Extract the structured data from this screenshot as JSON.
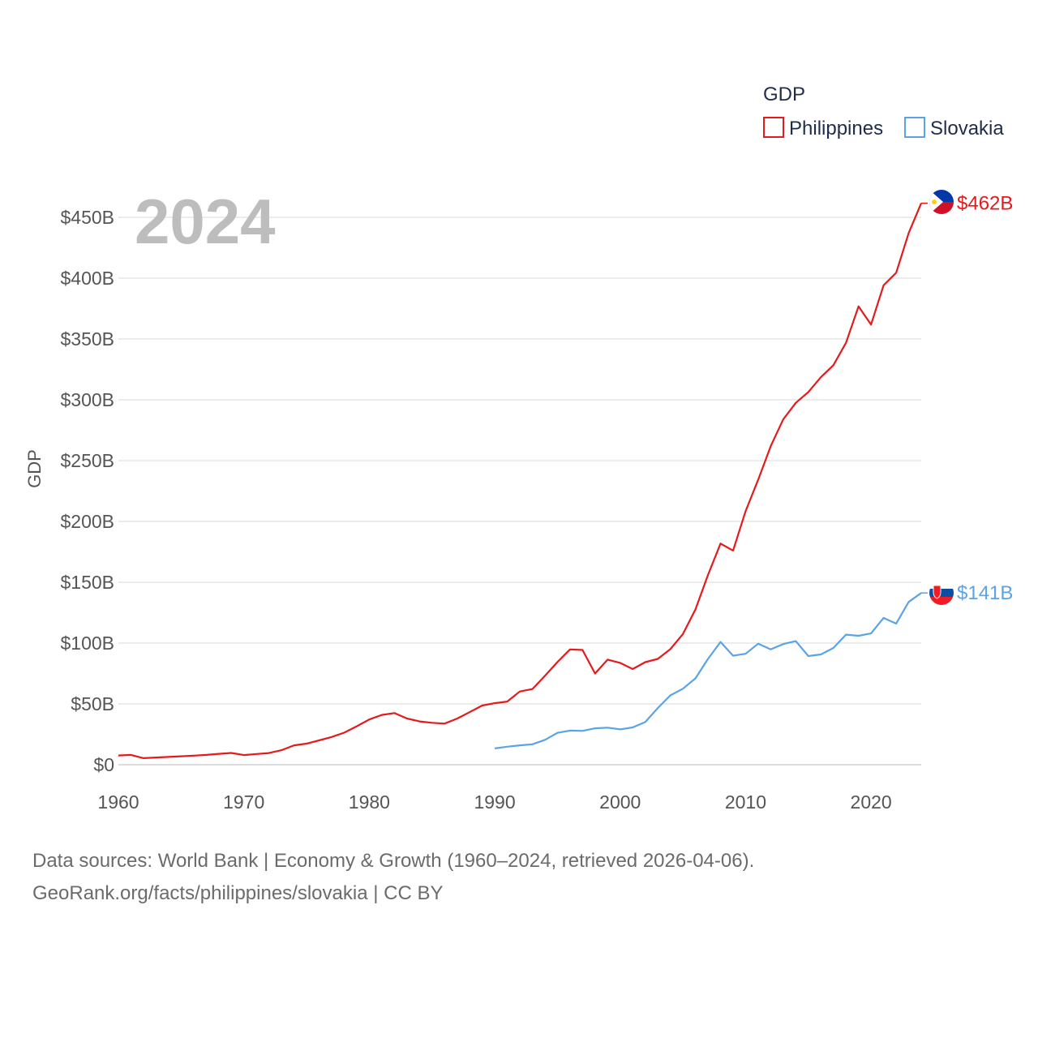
{
  "chart_data": {
    "type": "line",
    "title": "2024",
    "ylabel": "GDP",
    "xlabel": "",
    "xlim": [
      1960,
      2024
    ],
    "ylim": [
      0,
      450
    ],
    "x_ticks": [
      1960,
      1970,
      1980,
      1990,
      2000,
      2010,
      2020
    ],
    "y_ticks": [
      0,
      50,
      100,
      150,
      200,
      250,
      300,
      350,
      400,
      450
    ],
    "y_tick_labels": [
      "$0",
      "$50B",
      "$100B",
      "$150B",
      "$200B",
      "$250B",
      "$300B",
      "$350B",
      "$400B",
      "$450B"
    ],
    "grid": true,
    "legend": {
      "title": "GDP",
      "position": "top-right",
      "entries": [
        "Philippines",
        "Slovakia"
      ]
    },
    "series": [
      {
        "name": "Philippines",
        "color": "#e41a1c",
        "end_label": "$462B",
        "x": [
          1960,
          1961,
          1962,
          1963,
          1964,
          1965,
          1966,
          1967,
          1968,
          1969,
          1970,
          1971,
          1972,
          1973,
          1974,
          1975,
          1976,
          1977,
          1978,
          1979,
          1980,
          1981,
          1982,
          1983,
          1984,
          1985,
          1986,
          1987,
          1988,
          1989,
          1990,
          1991,
          1992,
          1993,
          1994,
          1995,
          1996,
          1997,
          1998,
          1999,
          2000,
          2001,
          2002,
          2003,
          2004,
          2005,
          2006,
          2007,
          2008,
          2009,
          2010,
          2011,
          2012,
          2013,
          2014,
          2015,
          2016,
          2017,
          2018,
          2019,
          2020,
          2021,
          2022,
          2023,
          2024
        ],
        "values": [
          7.6,
          8.1,
          5.4,
          5.9,
          6.4,
          6.9,
          7.5,
          8.1,
          8.9,
          9.7,
          7.9,
          8.8,
          9.6,
          11.9,
          15.9,
          17.3,
          20.0,
          22.8,
          26.3,
          31.6,
          37.2,
          40.9,
          42.5,
          38.0,
          35.6,
          34.5,
          33.8,
          37.9,
          43.2,
          48.7,
          50.6,
          51.9,
          60.2,
          62.2,
          73.0,
          84.4,
          94.8,
          94.3,
          75.0,
          86.4,
          83.7,
          78.7,
          84.3,
          87.0,
          95.0,
          107.4,
          127.7,
          155.9,
          181.8,
          176.1,
          208.4,
          234.2,
          261.9,
          283.9,
          297.5,
          306.4,
          318.6,
          328.5,
          346.8,
          376.8,
          361.8,
          394.1,
          404.4,
          437.1,
          461.6
        ]
      },
      {
        "name": "Slovakia",
        "color": "#5aa3e6",
        "end_label": "$141B",
        "x": [
          1990,
          1991,
          1992,
          1993,
          1994,
          1995,
          1996,
          1997,
          1998,
          1999,
          2000,
          2001,
          2002,
          2003,
          2004,
          2005,
          2006,
          2007,
          2008,
          2009,
          2010,
          2011,
          2012,
          2013,
          2014,
          2015,
          2016,
          2017,
          2018,
          2019,
          2020,
          2021,
          2022,
          2023,
          2024
        ],
        "values": [
          13.4,
          14.8,
          15.9,
          16.8,
          20.4,
          26.2,
          28.1,
          27.8,
          29.9,
          30.5,
          29.1,
          30.7,
          35.1,
          46.6,
          57.0,
          62.5,
          71.0,
          86.9,
          100.9,
          89.6,
          91.2,
          99.5,
          94.8,
          99.2,
          101.6,
          89.3,
          90.7,
          96.0,
          106.9,
          106.0,
          107.9,
          120.7,
          116.0,
          133.8,
          141.2
        ]
      }
    ]
  },
  "footer": {
    "source_line": "Data sources: World Bank | Economy & Growth (1960–2024, retrieved 2026-04-06).",
    "url_line": "GeoRank.org/facts/philippines/slovakia | CC BY"
  }
}
